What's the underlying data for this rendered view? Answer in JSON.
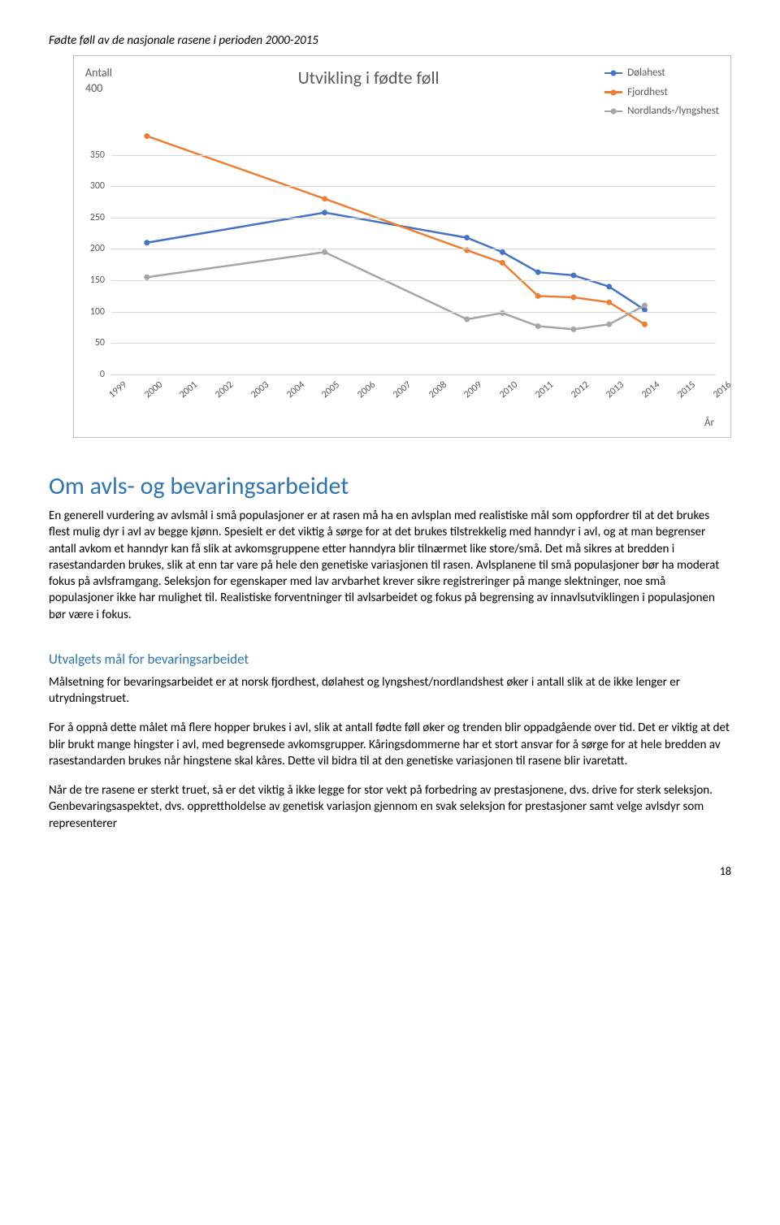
{
  "caption": "Fødte føll av de nasjonale rasene i perioden 2000-2015",
  "chart": {
    "type": "line",
    "title": "Utvikling i fødte føll",
    "y_axis_title": "Antall",
    "x_axis_title": "År",
    "ylim": [
      0,
      400
    ],
    "ytick_step": 50,
    "background_color": "#ffffff",
    "grid_color": "#d9d9d9",
    "title_fontsize": 22,
    "tick_fontsize": 12,
    "marker_size": 3.5,
    "line_width": 2.5,
    "x_labels": [
      "1999",
      "2000",
      "2001",
      "2002",
      "2003",
      "2004",
      "2005",
      "2006",
      "2007",
      "2008",
      "2009",
      "2010",
      "2011",
      "2012",
      "2013",
      "2014",
      "2015",
      "2016"
    ],
    "series": {
      "dolahest": {
        "label": "Dølahest",
        "color": "#4472c4",
        "x": [
          1,
          6,
          10,
          11,
          12,
          13,
          14,
          15
        ],
        "y": [
          210,
          258,
          218,
          195,
          163,
          158,
          140,
          103
        ]
      },
      "fjordhest": {
        "label": "Fjordhest",
        "color": "#ed7d31",
        "x": [
          1,
          6,
          10,
          11,
          12,
          13,
          14,
          15
        ],
        "y": [
          380,
          280,
          198,
          178,
          125,
          123,
          115,
          80
        ]
      },
      "nordlands": {
        "label": "Nordlands-/lyngshest",
        "color": "#a5a5a5",
        "x": [
          1,
          6,
          10,
          11,
          12,
          13,
          14,
          15
        ],
        "y": [
          155,
          195,
          88,
          98,
          77,
          72,
          80,
          110
        ]
      }
    }
  },
  "section_title": "Om avls- og bevaringsarbeidet",
  "intro_para": "En generell vurdering av avlsmål i små populasjoner er at rasen må ha en avlsplan med realistiske mål som oppfordrer til at det brukes flest mulig dyr i avl av begge kjønn. Spesielt er det viktig å sørge for at det brukes tilstrekkelig med hanndyr i avl, og at man begrenser antall avkom et hanndyr kan få slik at avkomsgruppene etter hanndyra blir tilnærmet like store/små. Det må sikres at bredden i rasestandarden brukes, slik at enn tar vare på hele den genetiske variasjonen til rasen. Avlsplanene til små populasjoner bør ha moderat fokus på avlsframgang. Seleksjon for egenskaper med lav arvbarhet krever sikre registreringer på mange slektninger, noe små populasjoner ikke har mulighet til. Realistiske forventninger til avlsarbeidet og fokus på begrensing av innavlsutviklingen i populasjonen bør være i fokus.",
  "sub_title": "Utvalgets mål for bevaringsarbeidet",
  "para2": "Målsetning for bevaringsarbeidet er at norsk fjordhest, dølahest og lyngshest/nordlandshest øker i antall slik at de ikke lenger er utrydningstruet.",
  "para3": "For å oppnå dette målet må flere hopper brukes i avl, slik at antall fødte føll øker og trenden blir oppadgående over tid. Det er viktig at det blir brukt mange hingster i avl, med begrensede avkomsgrupper. Kåringsdommerne har et stort ansvar for å sørge for at hele bredden av rasestandarden brukes når hingstene skal kåres. Dette vil bidra til at den genetiske variasjonen til rasene blir ivaretatt.",
  "para4": "Når de tre rasene er sterkt truet, så er det viktig å ikke legge for stor vekt på forbedring av prestasjonene, dvs. drive for sterk seleksjon. Genbevaringsaspektet, dvs. opprettholdelse av genetisk variasjon gjennom en svak seleksjon for prestasjoner samt velge avlsdyr som representerer",
  "page_number": "18"
}
